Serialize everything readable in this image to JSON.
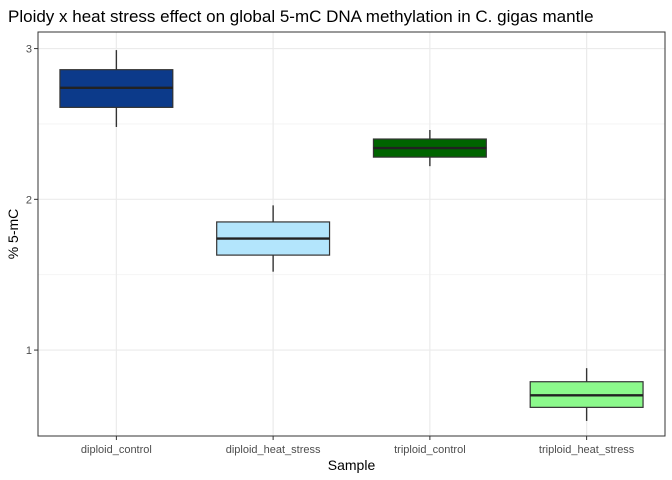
{
  "chart_data": {
    "type": "boxplot",
    "title": "Ploidy x heat stress effect on global 5-mC DNA methylation in C. gigas mantle",
    "xlabel": "Sample",
    "ylabel": "% 5-mC",
    "ylim": [
      0.43,
      3.11
    ],
    "yticks": [
      1,
      2,
      3
    ],
    "ytick_labels": [
      "1",
      "2",
      "3"
    ],
    "ygrid_minor": [
      1.5,
      2.5
    ],
    "grid": true,
    "legend": "none",
    "categories": [
      "diploid_control",
      "diploid_heat_stress",
      "triploid_control",
      "triploid_heat_stress"
    ],
    "boxes": [
      {
        "category": "diploid_control",
        "whisker_low": 2.48,
        "q1": 2.61,
        "median": 2.74,
        "q3": 2.86,
        "whisker_high": 2.99,
        "fill": "#0c3a8a"
      },
      {
        "category": "diploid_heat_stress",
        "whisker_low": 1.52,
        "q1": 1.63,
        "median": 1.74,
        "q3": 1.85,
        "whisker_high": 1.96,
        "fill": "#b3e5fc"
      },
      {
        "category": "triploid_control",
        "whisker_low": 2.22,
        "q1": 2.28,
        "median": 2.34,
        "q3": 2.4,
        "whisker_high": 2.46,
        "fill": "#006400"
      },
      {
        "category": "triploid_heat_stress",
        "whisker_low": 0.53,
        "q1": 0.62,
        "median": 0.7,
        "q3": 0.79,
        "whisker_high": 0.88,
        "fill": "#8cf98c"
      }
    ]
  },
  "colors": {
    "panel_border": "#333333",
    "grid_major": "#ebebeb",
    "grid_minor": "#f3f3f3",
    "tick_label": "#4d4d4d",
    "axis_title": "#000000"
  }
}
